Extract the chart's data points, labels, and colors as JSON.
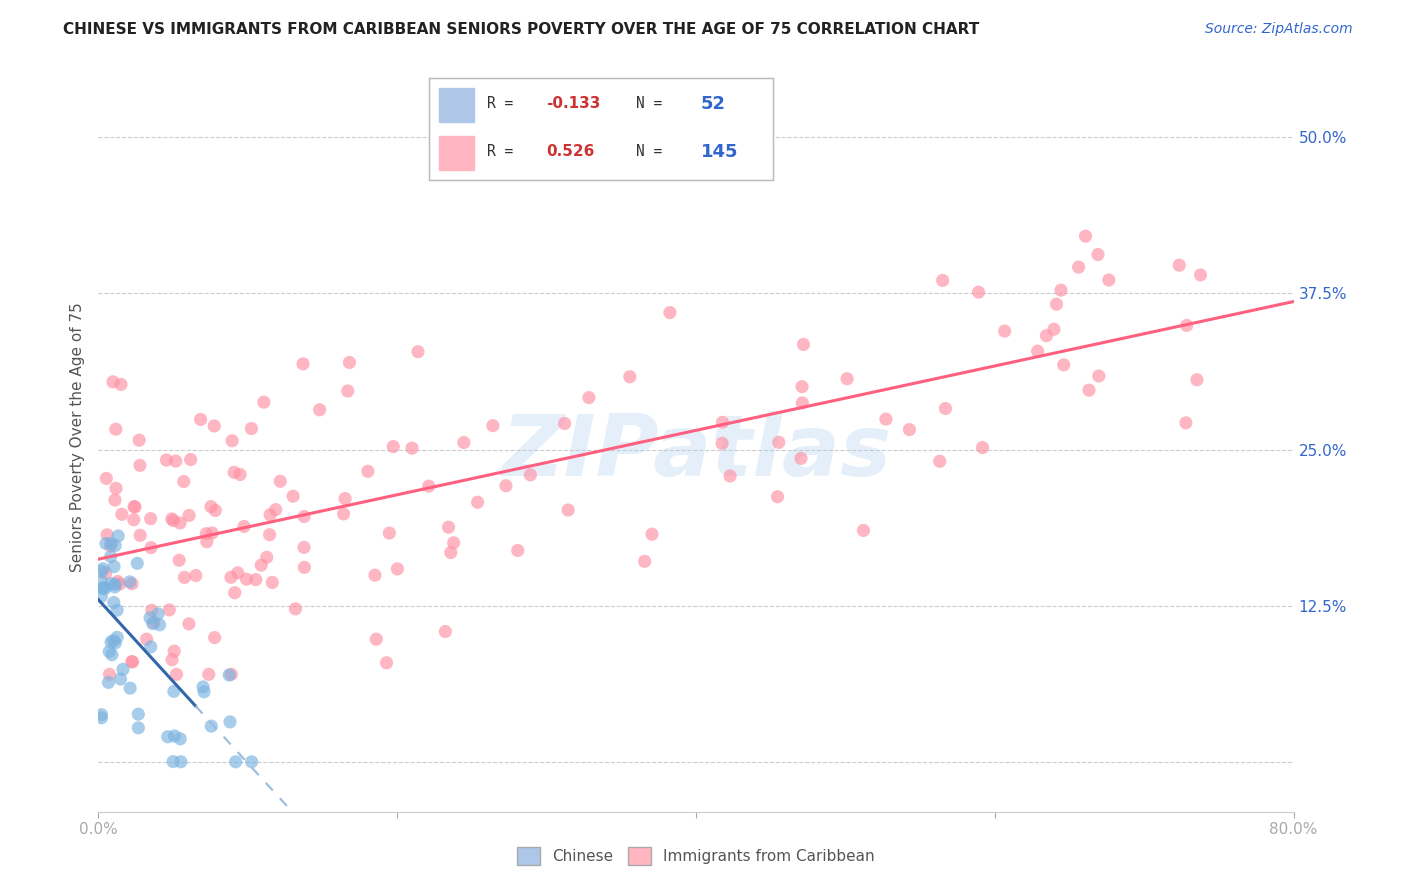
{
  "title": "CHINESE VS IMMIGRANTS FROM CARIBBEAN SENIORS POVERTY OVER THE AGE OF 75 CORRELATION CHART",
  "source": "Source: ZipAtlas.com",
  "ylabel": "Seniors Poverty Over the Age of 75",
  "xlim": [
    0.0,
    0.8
  ],
  "ylim": [
    -0.04,
    0.56
  ],
  "yticks_right": [
    0.0,
    0.125,
    0.25,
    0.375,
    0.5
  ],
  "yticklabels_right": [
    "",
    "12.5%",
    "25.0%",
    "37.5%",
    "50.0%"
  ],
  "background_color": "#ffffff",
  "grid_color": "#cccccc",
  "watermark_text": "ZIPatlas",
  "legend_color1": "#aec6e8",
  "legend_color2": "#ffb6c1",
  "scatter_color_chinese": "#7ab3e0",
  "scatter_color_caribbean": "#ff8fa3",
  "line_color_chinese": "#3366aa",
  "line_color_caribbean": "#ff6080",
  "line_color_chinese_dashed": "#99bbdd",
  "chinese_seed": 12345,
  "caribbean_seed": 9876
}
